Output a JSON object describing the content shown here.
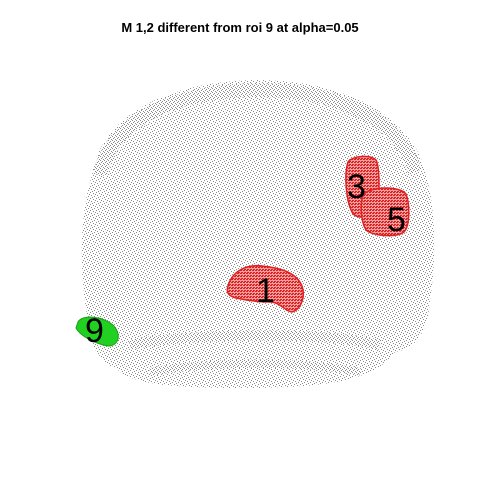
{
  "title": "M 1,2 different from roi 9 at alpha=0.05",
  "colors": {
    "background": "#ffffff",
    "brain_points": "#8a8a8a",
    "significant_roi": "#e02020",
    "reference_roi": "#20d020",
    "label": "#000000"
  },
  "rois": [
    {
      "id": "roi-1",
      "label": "1",
      "status": "significant"
    },
    {
      "id": "roi-3",
      "label": "3",
      "status": "significant"
    },
    {
      "id": "roi-5",
      "label": "5",
      "status": "significant"
    },
    {
      "id": "roi-9",
      "label": "9",
      "status": "reference"
    }
  ]
}
